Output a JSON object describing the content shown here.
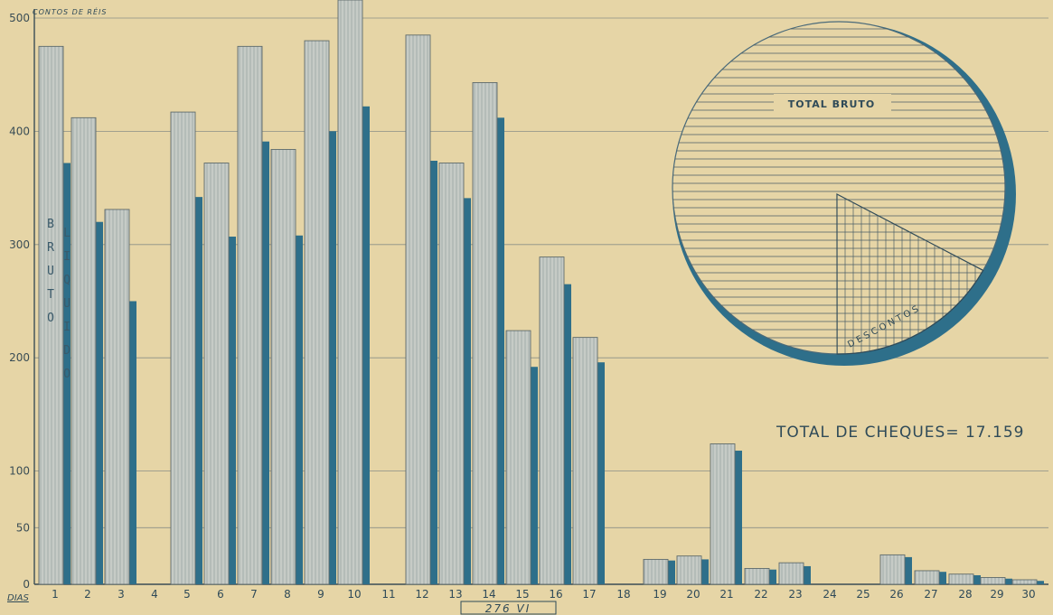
{
  "chart_data": {
    "type": "bar",
    "unit_label": "CONTOS DE RÉIS",
    "x_caption": "DIAS",
    "ylim": [
      0,
      500
    ],
    "yticks": [
      0,
      50,
      100,
      200,
      300,
      400,
      500
    ],
    "categories": [
      "1",
      "2",
      "3",
      "4",
      "5",
      "6",
      "7",
      "8",
      "9",
      "10",
      "11",
      "12",
      "13",
      "14",
      "15",
      "16",
      "17",
      "18",
      "19",
      "20",
      "21",
      "22",
      "23",
      "24",
      "25",
      "26",
      "27",
      "28",
      "29",
      "30"
    ],
    "series": [
      {
        "name": "BRUTO",
        "color": "#c2c7c2",
        "values": [
          475,
          412,
          331,
          null,
          417,
          372,
          475,
          384,
          480,
          520,
          null,
          485,
          372,
          443,
          224,
          289,
          218,
          null,
          22,
          25,
          124,
          14,
          19,
          null,
          null,
          26,
          12,
          9,
          6,
          4
        ]
      },
      {
        "name": "LIQUIDO",
        "color": "#2e6f8a",
        "values": [
          372,
          320,
          250,
          null,
          342,
          307,
          391,
          308,
          400,
          422,
          null,
          374,
          341,
          412,
          192,
          265,
          196,
          null,
          21,
          22,
          118,
          13,
          16,
          null,
          null,
          24,
          11,
          8,
          5,
          3
        ]
      }
    ],
    "grid": true,
    "annotations": {
      "total_cheques": "TOTAL DE CHEQUES= 17.159",
      "pie_total_label": "TOTAL BRUTO",
      "pie_discount_label": "DESCONTOS",
      "page_label": "276  VI"
    },
    "pie": {
      "type": "pie",
      "labels": [
        "TOTAL BRUTO",
        "DESCONTOS"
      ],
      "discount_share": 0.14
    }
  },
  "colors": {
    "background": "#e6d5a6",
    "bruto": "#c2c7c2",
    "liquido": "#2e6f8a",
    "ink": "#2f4a58"
  }
}
